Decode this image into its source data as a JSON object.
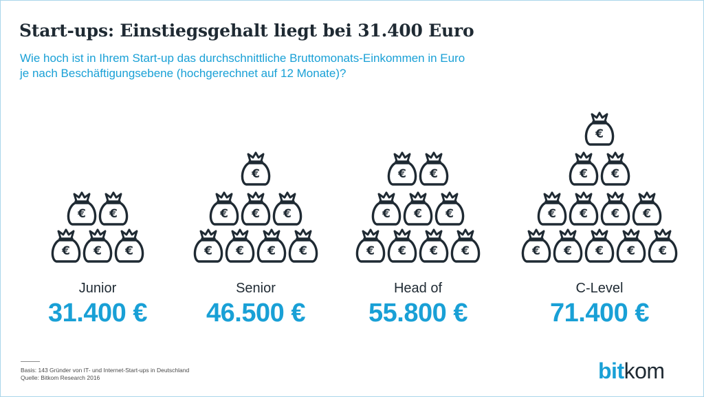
{
  "title": "Start-ups: Einstiegsgehalt liegt bei 31.400 Euro",
  "subtitle": {
    "line1": "Wie hoch ist in Ihrem Start-up das durchschnittliche Bruttomonats-Einkommen in Euro",
    "line2": "je nach Beschäftigungsebene (hochgerechnet auf 12 Monate)?"
  },
  "chart_data": {
    "type": "pictograph",
    "icon": "euro-money-bag-icon",
    "categories": [
      "Junior",
      "Senior",
      "Head of",
      "C-Level"
    ],
    "values": [
      31400,
      46500,
      55800,
      71400
    ],
    "value_labels": [
      "31.400 €",
      "46.500 €",
      "55.800 €",
      "71.400 €"
    ],
    "bag_counts": [
      5,
      8,
      9,
      12
    ],
    "title": "Start-ups: Einstiegsgehalt liegt bei 31.400 Euro",
    "colors": {
      "icon": "#1f2a33",
      "value": "#19a0d6",
      "category": "#1f2a33"
    }
  },
  "footer": {
    "basis": "Basis: 143 Gründer von IT- und Internet-Start-ups in Deutschland",
    "source": "Quelle: Bitkom Research 2016"
  },
  "logo": {
    "part1": "bit",
    "part2": "kom"
  },
  "colors": {
    "accent": "#19a0d6",
    "text": "#1f2a33",
    "frame": "#a9d6ea"
  }
}
